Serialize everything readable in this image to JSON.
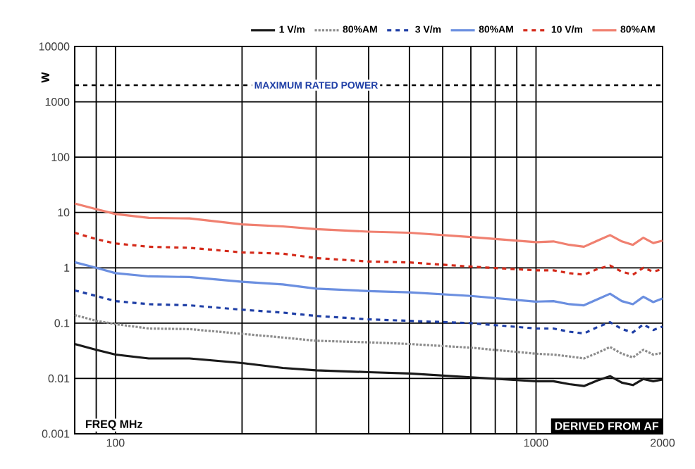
{
  "chart_data": {
    "type": "line",
    "ylabel": "W",
    "xlabel": "FREQ  MHz",
    "log": "xy",
    "grid": true,
    "legend": "top",
    "xlim": [
      80,
      2000
    ],
    "ylim": [
      0.001,
      10000
    ],
    "xticks": [
      {
        "value": 90,
        "label": null
      },
      100,
      {
        "value": 200,
        "label": null
      },
      {
        "value": 300,
        "label": null
      },
      {
        "value": 400,
        "label": null
      },
      {
        "value": 500,
        "label": null
      },
      {
        "value": 600,
        "label": null
      },
      {
        "value": 700,
        "label": null
      },
      {
        "value": 800,
        "label": null
      },
      {
        "value": 900,
        "label": null
      },
      1000,
      2000
    ],
    "yticks": [
      0.001,
      0.01,
      0.1,
      1,
      10,
      100,
      1000,
      10000
    ],
    "x": [
      80,
      90,
      100,
      120,
      150,
      200,
      250,
      300,
      400,
      500,
      700,
      1000,
      1100,
      1200,
      1300,
      1400,
      1500,
      1600,
      1700,
      1800,
      1900,
      2000
    ],
    "series": [
      {
        "name": "1 V/m",
        "color": "#1a1a1a",
        "line_style": "solid",
        "values": [
          0.042,
          0.033,
          0.027,
          0.023,
          0.023,
          0.019,
          0.0155,
          0.014,
          0.013,
          0.0123,
          0.0105,
          0.0089,
          0.0089,
          0.0079,
          0.0073,
          0.0092,
          0.011,
          0.0084,
          0.0076,
          0.0098,
          0.0089,
          0.0096
        ]
      },
      {
        "name": "80%AM",
        "color": "#8c8c8c",
        "line_style": "dotted",
        "values": [
          0.14,
          0.11,
          0.096,
          0.08,
          0.078,
          0.064,
          0.055,
          0.048,
          0.045,
          0.042,
          0.036,
          0.028,
          0.027,
          0.025,
          0.023,
          0.029,
          0.037,
          0.028,
          0.024,
          0.033,
          0.027,
          0.029
        ]
      },
      {
        "name": "3 V/m",
        "color": "#1f3fa6",
        "line_style": "dashed",
        "values": [
          0.39,
          0.31,
          0.25,
          0.22,
          0.21,
          0.175,
          0.155,
          0.135,
          0.117,
          0.11,
          0.1,
          0.08,
          0.08,
          0.07,
          0.065,
          0.085,
          0.104,
          0.078,
          0.068,
          0.095,
          0.075,
          0.087
        ]
      },
      {
        "name": "80%AM",
        "color": "#6b8fe0",
        "line_style": "solid",
        "values": [
          1.26,
          1.0,
          0.8,
          0.7,
          0.68,
          0.56,
          0.5,
          0.42,
          0.38,
          0.36,
          0.31,
          0.245,
          0.25,
          0.22,
          0.21,
          0.27,
          0.34,
          0.25,
          0.22,
          0.3,
          0.24,
          0.28
        ]
      },
      {
        "name": "10 V/m",
        "color": "#d42a1a",
        "line_style": "dashed",
        "values": [
          4.3,
          3.3,
          2.75,
          2.4,
          2.3,
          1.9,
          1.8,
          1.5,
          1.3,
          1.25,
          1.05,
          0.9,
          0.9,
          0.8,
          0.75,
          0.95,
          1.1,
          0.85,
          0.75,
          1.0,
          0.85,
          0.95
        ]
      },
      {
        "name": "80%AM",
        "color": "#f08070",
        "line_style": "solid",
        "values": [
          14.5,
          11.5,
          9.4,
          8.0,
          7.8,
          6.1,
          5.6,
          5.0,
          4.5,
          4.3,
          3.6,
          2.9,
          3.0,
          2.6,
          2.4,
          3.1,
          3.9,
          3.0,
          2.6,
          3.5,
          2.8,
          3.1
        ]
      }
    ],
    "ref_lines": [
      {
        "axis": "y",
        "value": 2000,
        "label": "MAXIMUM RATED POWER",
        "color": "#000000",
        "line_style": "dashed"
      }
    ],
    "annotations": [
      "DERIVED FROM AF"
    ]
  }
}
